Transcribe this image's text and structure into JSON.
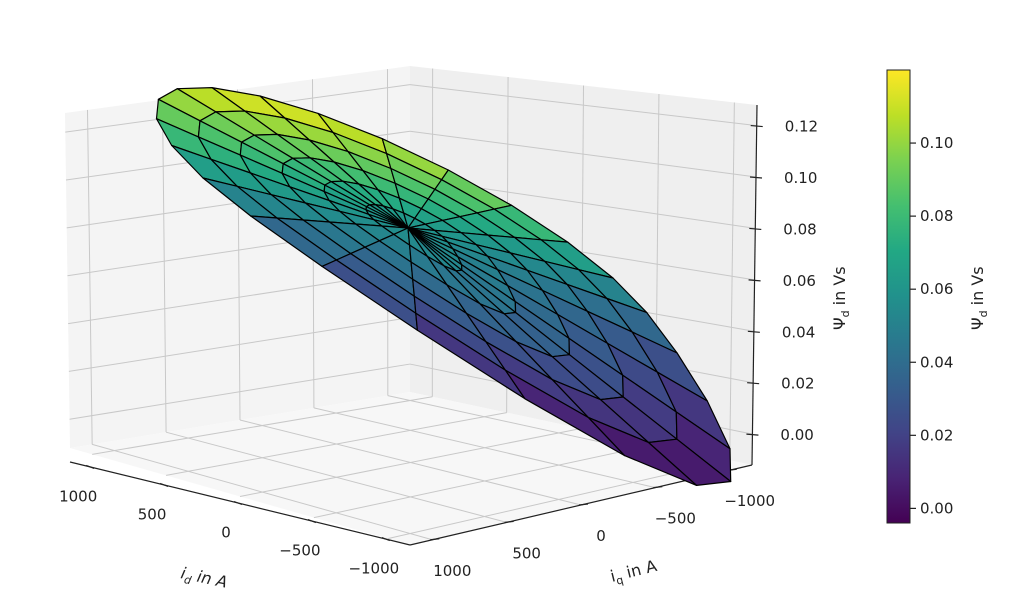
{
  "chart_data": {
    "type": "surface3d",
    "title": "",
    "xlabel": "i_d in A",
    "ylabel": "i_q in A",
    "zlabel": "Ψ_d in Vs",
    "colorbar_label": "Ψ_d in Vs",
    "colormap": "viridis",
    "x_ticks": [
      1000,
      500,
      0,
      -500,
      -1000
    ],
    "x_tick_labels": [
      "1000",
      "500",
      "0",
      "−500",
      "−1000"
    ],
    "y_ticks": [
      1000,
      500,
      0,
      -500,
      -1000
    ],
    "y_tick_labels": [
      "1000",
      "500",
      "0",
      "−500",
      "−1000"
    ],
    "z_ticks": [
      0.0,
      0.02,
      0.04,
      0.06,
      0.08,
      0.1,
      0.12
    ],
    "z_tick_labels": [
      "0.00",
      "0.02",
      "0.04",
      "0.06",
      "0.08",
      "0.10",
      "0.12"
    ],
    "colorbar_ticks": [
      0.0,
      0.02,
      0.04,
      0.06,
      0.08,
      0.1
    ],
    "colorbar_tick_labels": [
      "0.00",
      "0.02",
      "0.04",
      "0.06",
      "0.08",
      "0.10"
    ],
    "colorbar_range": [
      -0.004,
      0.12
    ],
    "xlim": [
      -1150,
      1150
    ],
    "ylim": [
      -1150,
      1150
    ],
    "zlim": [
      -0.012,
      0.128
    ],
    "grid": true,
    "surface": {
      "domain": "polar disk, radius 1000 A",
      "rings": 6,
      "spokes": 24,
      "description": "Ψ_d plane over (i_d, i_q) disk; highest (~0.116 Vs) at one edge, lowest (~0 Vs) at opposite edge, ~0.058 Vs at center",
      "z_center": 0.058,
      "z_max": 0.116,
      "z_min": 0.0
    }
  }
}
